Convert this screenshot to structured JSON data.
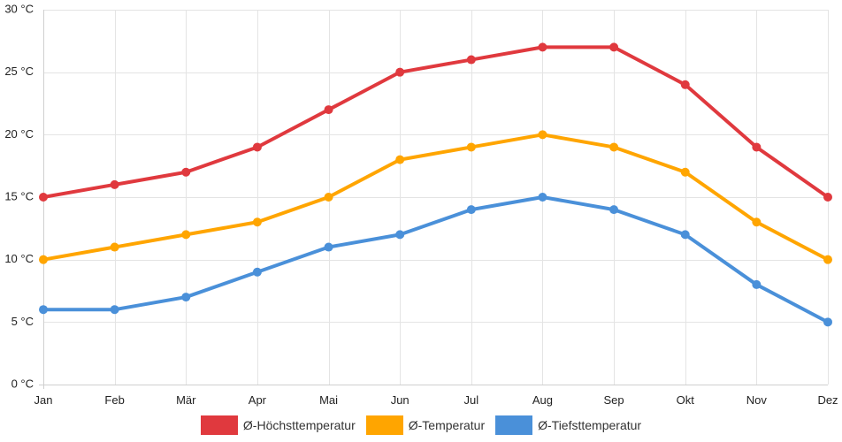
{
  "chart_data": {
    "type": "line",
    "categories": [
      "Jan",
      "Feb",
      "Mär",
      "Apr",
      "Mai",
      "Jun",
      "Jul",
      "Aug",
      "Sep",
      "Okt",
      "Nov",
      "Dez"
    ],
    "yticks": [
      "0 °C",
      "5 °C",
      "10 °C",
      "15 °C",
      "20 °C",
      "25 °C",
      "30 °C"
    ],
    "ylim": [
      0,
      30
    ],
    "ystep": 5,
    "grid": true,
    "legend_position": "bottom-center",
    "series": [
      {
        "name": "Ø-Höchsttemperatur",
        "color": "#e0393e",
        "values": [
          15,
          16,
          17,
          19,
          22,
          25,
          26,
          27,
          27,
          24,
          19,
          15
        ]
      },
      {
        "name": "Ø-Temperatur",
        "color": "#ffa500",
        "values": [
          10,
          11,
          12,
          13,
          15,
          18,
          19,
          20,
          19,
          17,
          13,
          10
        ]
      },
      {
        "name": "Ø-Tiefsttemperatur",
        "color": "#4a90d9",
        "values": [
          6,
          6,
          7,
          9,
          11,
          12,
          14,
          15,
          14,
          12,
          8,
          5
        ]
      }
    ]
  }
}
